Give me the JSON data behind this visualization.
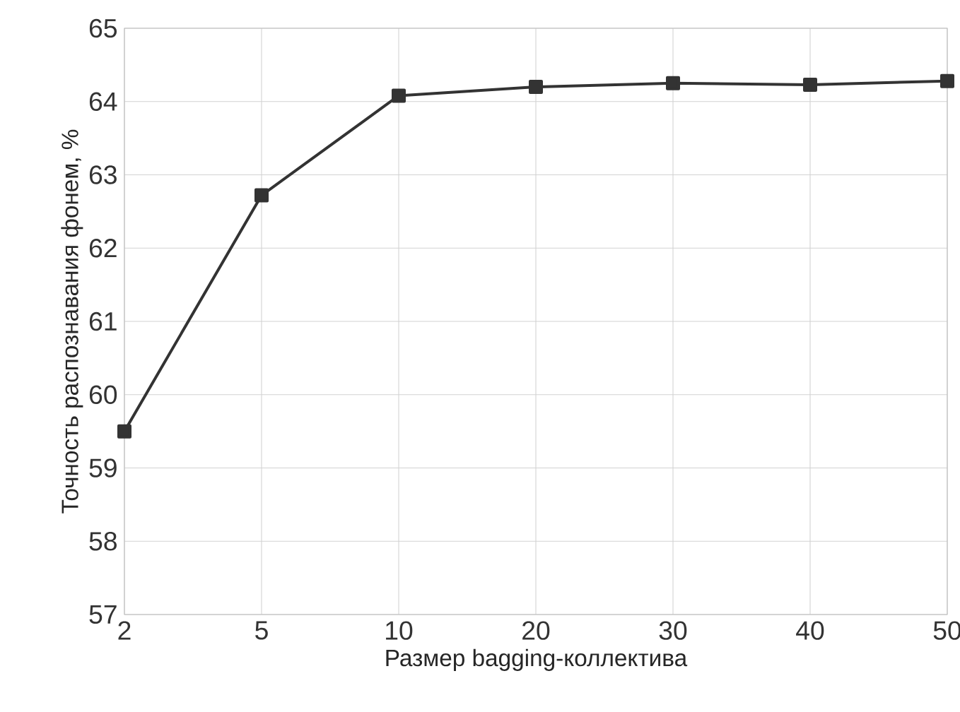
{
  "chart_data": {
    "type": "line",
    "xlabel": "Размер bagging-коллектива",
    "ylabel": "Точность распознавания фонем, %",
    "categories": [
      "2",
      "5",
      "10",
      "20",
      "30",
      "40",
      "50"
    ],
    "values": [
      59.5,
      62.72,
      64.08,
      64.2,
      64.25,
      64.23,
      64.28
    ],
    "color": "#333333",
    "ylim": [
      57,
      65
    ],
    "yticks": [
      57,
      58,
      59,
      60,
      61,
      62,
      63,
      64,
      65
    ],
    "grid": true,
    "marker": "square"
  }
}
